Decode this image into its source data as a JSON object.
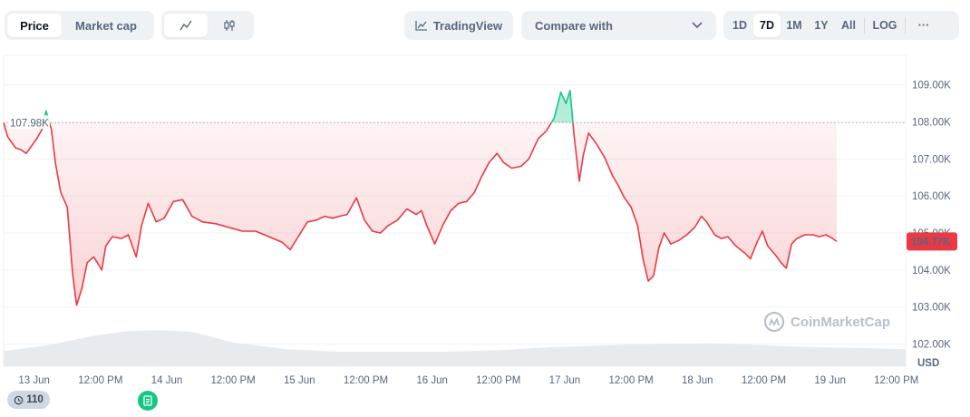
{
  "toolbar": {
    "price_label": "Price",
    "market_cap_label": "Market cap",
    "tradingview_label": "TradingView",
    "compare_label": "Compare with",
    "ranges": [
      "1D",
      "7D",
      "1M",
      "1Y",
      "All"
    ],
    "active_range": "7D",
    "log_label": "LOG",
    "more_label": "···"
  },
  "colors": {
    "up": "#16c784",
    "down": "#ea3943",
    "grid": "#eff2f5",
    "text": "#58667e"
  },
  "chart_data": {
    "type": "line",
    "currency_label": "USD",
    "reference_label": "107.98K",
    "reference_value": 107980,
    "current_label": "104.77K",
    "current_value": 104770,
    "ylim": [
      101400,
      109800
    ],
    "y_ticks": [
      {
        "label": "109.00K",
        "value": 109000
      },
      {
        "label": "108.00K",
        "value": 108000
      },
      {
        "label": "107.00K",
        "value": 107000
      },
      {
        "label": "106.00K",
        "value": 106000
      },
      {
        "label": "105.00K",
        "value": 105000
      },
      {
        "label": "104.00K",
        "value": 104000
      },
      {
        "label": "103.00K",
        "value": 103000
      },
      {
        "label": "102.00K",
        "value": 102000
      }
    ],
    "x_ticks": [
      "13 Jun",
      "12:00 PM",
      "14 Jun",
      "12:00 PM",
      "15 Jun",
      "12:00 PM",
      "16 Jun",
      "12:00 PM",
      "17 Jun",
      "12:00 PM",
      "18 Jun",
      "12:00 PM",
      "19 Jun",
      "12:00 PM"
    ],
    "x_tick_positions": [
      0.5,
      1,
      1.5,
      2,
      2.5,
      3,
      3.5,
      4,
      4.5,
      5,
      5.5,
      6,
      6.5,
      7
    ],
    "xlim": [
      0.27,
      7.07
    ],
    "price_points": [
      [
        0.27,
        107980
      ],
      [
        0.3,
        107600
      ],
      [
        0.36,
        107300
      ],
      [
        0.4,
        107250
      ],
      [
        0.44,
        107150
      ],
      [
        0.47,
        107300
      ],
      [
        0.52,
        107550
      ],
      [
        0.56,
        107800
      ],
      [
        0.59,
        108300
      ],
      [
        0.63,
        107800
      ],
      [
        0.66,
        106900
      ],
      [
        0.7,
        106100
      ],
      [
        0.75,
        105700
      ],
      [
        0.79,
        103900
      ],
      [
        0.82,
        103050
      ],
      [
        0.86,
        103500
      ],
      [
        0.9,
        104200
      ],
      [
        0.95,
        104350
      ],
      [
        1.01,
        104000
      ],
      [
        1.04,
        104650
      ],
      [
        1.09,
        104900
      ],
      [
        1.16,
        104850
      ],
      [
        1.21,
        104950
      ],
      [
        1.27,
        104350
      ],
      [
        1.31,
        105200
      ],
      [
        1.36,
        105800
      ],
      [
        1.42,
        105300
      ],
      [
        1.48,
        105400
      ],
      [
        1.55,
        105850
      ],
      [
        1.62,
        105900
      ],
      [
        1.69,
        105450
      ],
      [
        1.77,
        105300
      ],
      [
        1.87,
        105250
      ],
      [
        1.97,
        105150
      ],
      [
        2.07,
        105050
      ],
      [
        2.17,
        105050
      ],
      [
        2.27,
        104900
      ],
      [
        2.37,
        104750
      ],
      [
        2.43,
        104550
      ],
      [
        2.5,
        104950
      ],
      [
        2.56,
        105300
      ],
      [
        2.63,
        105350
      ],
      [
        2.69,
        105450
      ],
      [
        2.75,
        105400
      ],
      [
        2.8,
        105450
      ],
      [
        2.86,
        105500
      ],
      [
        2.93,
        105950
      ],
      [
        2.99,
        105350
      ],
      [
        3.05,
        105050
      ],
      [
        3.11,
        105000
      ],
      [
        3.17,
        105200
      ],
      [
        3.24,
        105350
      ],
      [
        3.31,
        105650
      ],
      [
        3.38,
        105500
      ],
      [
        3.42,
        105600
      ],
      [
        3.46,
        105200
      ],
      [
        3.52,
        104700
      ],
      [
        3.58,
        105200
      ],
      [
        3.64,
        105600
      ],
      [
        3.7,
        105800
      ],
      [
        3.76,
        105850
      ],
      [
        3.82,
        106100
      ],
      [
        3.87,
        106500
      ],
      [
        3.93,
        106900
      ],
      [
        3.99,
        107150
      ],
      [
        4.04,
        106900
      ],
      [
        4.1,
        106750
      ],
      [
        4.17,
        106800
      ],
      [
        4.23,
        107000
      ],
      [
        4.3,
        107550
      ],
      [
        4.36,
        107750
      ],
      [
        4.42,
        108100
      ],
      [
        4.47,
        108800
      ],
      [
        4.51,
        108500
      ],
      [
        4.54,
        108850
      ],
      [
        4.57,
        107650
      ],
      [
        4.61,
        106400
      ],
      [
        4.64,
        107100
      ],
      [
        4.68,
        107700
      ],
      [
        4.74,
        107400
      ],
      [
        4.8,
        107050
      ],
      [
        4.86,
        106550
      ],
      [
        4.9,
        106300
      ],
      [
        4.95,
        105950
      ],
      [
        5.0,
        105700
      ],
      [
        5.05,
        105200
      ],
      [
        5.09,
        104300
      ],
      [
        5.13,
        103700
      ],
      [
        5.17,
        103850
      ],
      [
        5.21,
        104600
      ],
      [
        5.25,
        105000
      ],
      [
        5.3,
        104700
      ],
      [
        5.36,
        104800
      ],
      [
        5.42,
        104950
      ],
      [
        5.48,
        105150
      ],
      [
        5.53,
        105450
      ],
      [
        5.57,
        105300
      ],
      [
        5.63,
        104950
      ],
      [
        5.68,
        104850
      ],
      [
        5.73,
        104900
      ],
      [
        5.79,
        104650
      ],
      [
        5.86,
        104450
      ],
      [
        5.9,
        104300
      ],
      [
        5.95,
        104750
      ],
      [
        5.99,
        105050
      ],
      [
        6.03,
        104650
      ],
      [
        6.09,
        104400
      ],
      [
        6.13,
        104200
      ],
      [
        6.17,
        104050
      ],
      [
        6.21,
        104700
      ],
      [
        6.25,
        104850
      ],
      [
        6.31,
        104950
      ],
      [
        6.37,
        104950
      ],
      [
        6.42,
        104900
      ],
      [
        6.47,
        104950
      ],
      [
        6.52,
        104850
      ],
      [
        6.55,
        104770
      ]
    ],
    "volume_points": [
      [
        0.27,
        0.4
      ],
      [
        0.6,
        0.55
      ],
      [
        0.95,
        0.8
      ],
      [
        1.2,
        0.92
      ],
      [
        1.45,
        0.95
      ],
      [
        1.7,
        0.9
      ],
      [
        2.0,
        0.62
      ],
      [
        2.4,
        0.45
      ],
      [
        2.8,
        0.38
      ],
      [
        3.2,
        0.38
      ],
      [
        3.6,
        0.38
      ],
      [
        4.0,
        0.42
      ],
      [
        4.4,
        0.5
      ],
      [
        4.8,
        0.55
      ],
      [
        5.2,
        0.58
      ],
      [
        5.6,
        0.6
      ],
      [
        6.0,
        0.55
      ],
      [
        6.4,
        0.5
      ],
      [
        7.07,
        0.45
      ]
    ],
    "watermark": "CoinMarketCap",
    "events_count": "110"
  }
}
